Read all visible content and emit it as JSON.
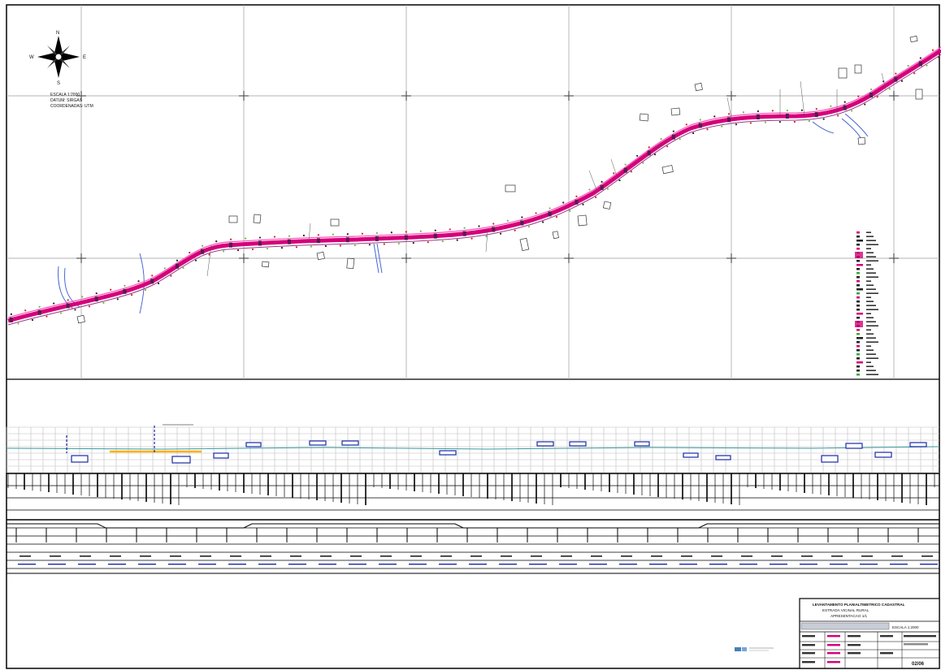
{
  "compass": {
    "north_label": "N",
    "south_label": "S",
    "east_label": "E",
    "west_label": "W",
    "icon": "compass-rose-icon"
  },
  "plan_notes": {
    "lines": [
      "ESCALA 1:2000",
      "DATUM: SIRGAS",
      "COORDENADAS: UTM"
    ]
  },
  "title_block": {
    "title_lines": [
      "LEVANTAMENTO PLANIALTIMETRICO CADASTRAL",
      "ESTRADA VICINAL RURAL",
      "APRESENTACAO 1/1"
    ],
    "sheet_number": "02/06",
    "scale_label": "ESCALA 1:2000"
  },
  "colors": {
    "road": "#d4007a",
    "road_edge": "#9a3a86",
    "grid": "#9a9a9a",
    "water": "#3a5bd0",
    "profile_box": "#1a2aa8",
    "profile_line": "#3b9aa0",
    "highlight": "#ffb000"
  }
}
